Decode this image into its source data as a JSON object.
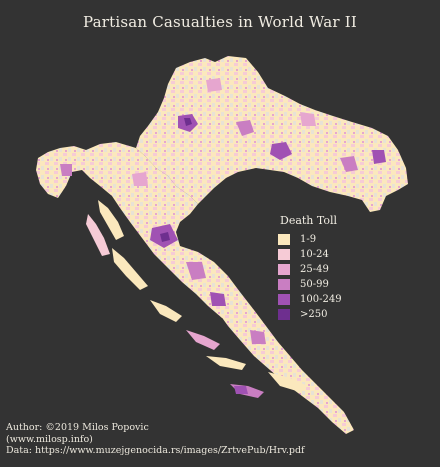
{
  "title": "Partisan Casualties in World War II",
  "legend": {
    "title": "Death Toll",
    "items": [
      {
        "label": "1-9",
        "color": "#fbe8bd"
      },
      {
        "label": "10-24",
        "color": "#f6cbd6"
      },
      {
        "label": "25-49",
        "color": "#e6a6cf"
      },
      {
        "label": "50-99",
        "color": "#c97ec2"
      },
      {
        "label": "100-249",
        "color": "#a052b3"
      },
      {
        "label": ">250",
        "color": "#6e2f8f"
      }
    ]
  },
  "credits": {
    "author": "Author: ©2019 Milos Popovic",
    "website": "(www.milosp.info)",
    "data": "Data: https://www.muzejgenocida.rs/images/ZrtvePub/Hrv.pdf"
  },
  "colors": {
    "background": "#333333",
    "no_data": "#cfcfcf"
  }
}
